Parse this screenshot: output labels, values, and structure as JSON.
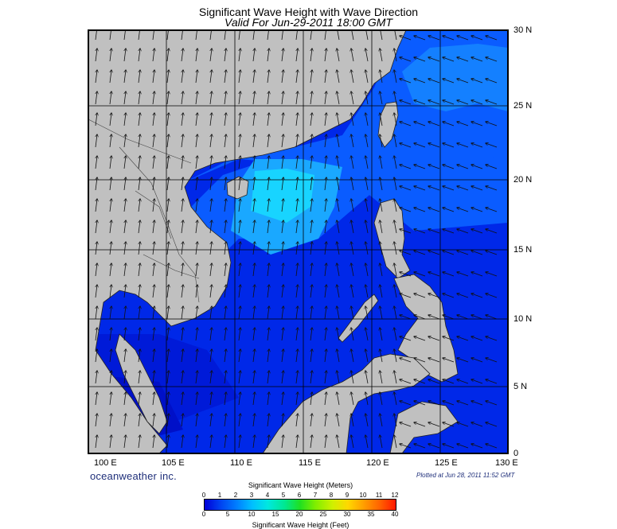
{
  "title": "Significant Wave Height with Wave Direction",
  "subtitle": "Valid For Jun-29-2011 18:00 GMT",
  "lat_labels": [
    "30 N",
    "25 N",
    "20 N",
    "15 N",
    "10 N",
    "5 N",
    "0"
  ],
  "lon_labels": [
    "100 E",
    "105 E",
    "110 E",
    "115 E",
    "120 E",
    "125 E",
    "130 E"
  ],
  "brand": "oceanweather inc.",
  "plotted": "Plotted at Jun 28, 2011 11:52 GMT",
  "colorbar": {
    "title_meters": "Significant Wave Height (Meters)",
    "title_feet": "Significant Wave Height (Feet)",
    "meters_ticks": [
      "0",
      "1",
      "2",
      "3",
      "4",
      "5",
      "6",
      "7",
      "8",
      "9",
      "10",
      "11",
      "12"
    ],
    "feet_ticks": [
      "0",
      "5",
      "10",
      "15",
      "20",
      "25",
      "30",
      "35",
      "40"
    ]
  },
  "colors": {
    "land": "#c0c0c0",
    "low_wave": "#0020e8",
    "mid_wave": "#0088ff",
    "high_wave": "#00c8ff",
    "grid": "#000000"
  },
  "map_extent": {
    "lon": [
      99,
      130
    ],
    "lat": [
      0,
      30
    ]
  },
  "wave_direction": "towards north / north-east (SW monsoon swell)"
}
